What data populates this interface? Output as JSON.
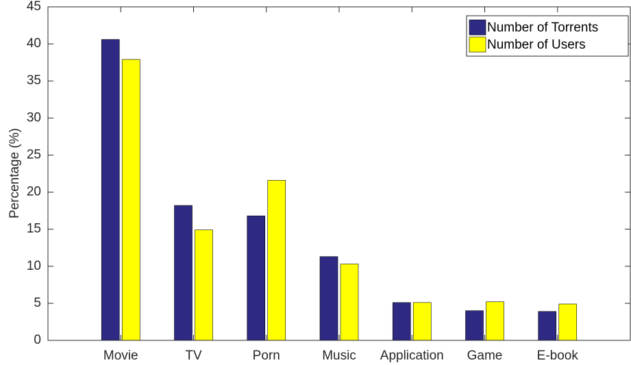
{
  "chart_data": {
    "type": "bar",
    "y_label": "Percentage (%)",
    "categories": [
      "Movie",
      "TV",
      "Porn",
      "Music",
      "Application",
      "Game",
      "E-book"
    ],
    "series": [
      {
        "name": "Number of Torrents",
        "color": "#2e2a84",
        "values": [
          40.6,
          18.2,
          16.8,
          11.3,
          5.1,
          4.0,
          3.9
        ]
      },
      {
        "name": "Number of Users",
        "color": "#ffff00",
        "values": [
          37.9,
          14.9,
          21.6,
          10.3,
          5.1,
          5.2,
          4.9
        ]
      }
    ],
    "ylim": [
      0,
      45
    ],
    "yticks": [
      0,
      5,
      10,
      15,
      20,
      25,
      30,
      35,
      40,
      45
    ],
    "grid": false,
    "legend": "top-right"
  }
}
